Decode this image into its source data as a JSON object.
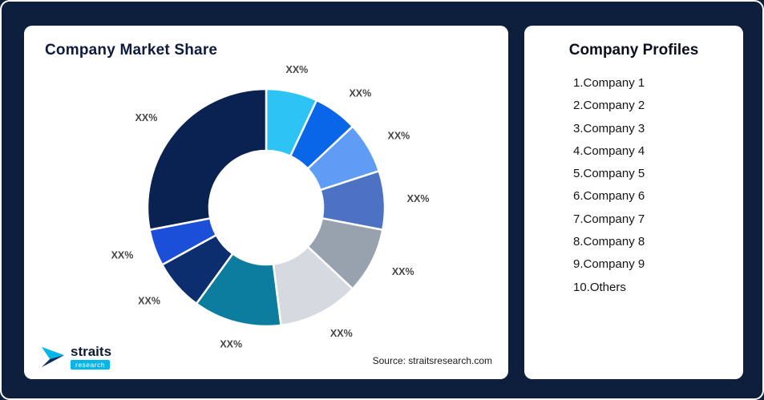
{
  "frame": {
    "background": "#0E1E3D",
    "border": "#FFFFFF"
  },
  "left_card": {
    "title": "Company Market Share",
    "source": "Source: straitsresearch.com",
    "logo": {
      "brand": "straits",
      "sub": "research",
      "accent": "#00B7E8",
      "navy": "#0D2B5E"
    }
  },
  "right_card": {
    "title": "Company Profiles",
    "items": [
      "1.Company 1",
      "2.Company 2",
      "3.Company 3",
      "4.Company 4",
      "5.Company 5",
      "6.Company 6",
      "7.Company 7",
      "8.Company 8",
      "9.Company 9",
      "10.Others"
    ]
  },
  "chart_data": {
    "type": "pie",
    "subtype": "donut",
    "title": "Company Market Share",
    "categories": [
      "Company 1",
      "Company 2",
      "Company 3",
      "Company 4",
      "Company 5",
      "Company 6",
      "Company 7",
      "Company 8",
      "Company 9",
      "Others"
    ],
    "values": [
      7,
      6,
      7,
      8,
      9,
      11,
      12,
      7,
      5,
      28
    ],
    "labels": [
      "XX%",
      "XX%",
      "XX%",
      "XX%",
      "XX%",
      "XX%",
      "XX%",
      "XX%",
      "XX%",
      "XX%"
    ],
    "colors": [
      "#2EC3F5",
      "#0A66E8",
      "#5E9CF5",
      "#4D72C4",
      "#98A2AE",
      "#D5DAE0",
      "#0C7D9E",
      "#0C2E6E",
      "#1B4FD8",
      "#0A2251"
    ],
    "start_angle_deg": -90,
    "direction": "clockwise",
    "inner_radius_ratio": 0.48,
    "legend_position": "none",
    "data_labels": "outside"
  }
}
